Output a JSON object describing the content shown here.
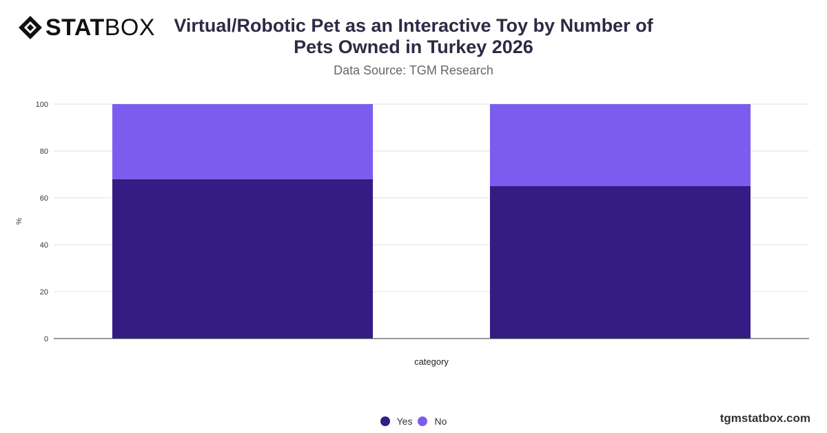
{
  "brand": {
    "logo_bold": "STAT",
    "logo_light": "BOX",
    "watermark": "tgmstatbox.com"
  },
  "header": {
    "title": "Virtual/Robotic Pet as an Interactive Toy by Number of Pets Owned in Turkey 2026",
    "subtitle": "Data Source: TGM Research"
  },
  "chart_data": {
    "type": "bar",
    "stacked": true,
    "title": "Virtual/Robotic Pet as an Interactive Toy by Number of Pets Owned in Turkey 2026",
    "xlabel": "category",
    "ylabel": "%",
    "ylim": [
      0,
      100
    ],
    "yticks": [
      0,
      20,
      40,
      60,
      80,
      100
    ],
    "categories": [
      "",
      ""
    ],
    "series": [
      {
        "name": "Yes",
        "color": "#341c84",
        "values": [
          68,
          65
        ]
      },
      {
        "name": "No",
        "color": "#7b5cef",
        "values": [
          32,
          35
        ]
      }
    ],
    "grid": true,
    "legend_position": "bottom"
  }
}
